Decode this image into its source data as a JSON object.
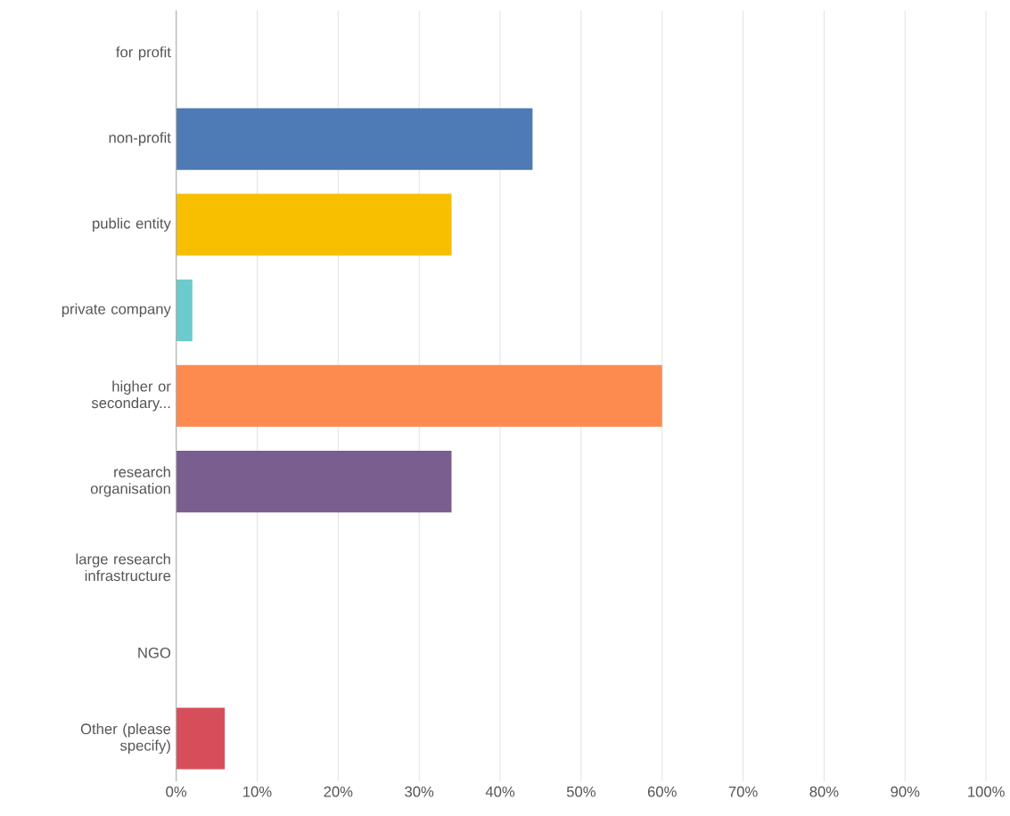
{
  "chart_data": {
    "type": "bar",
    "orientation": "horizontal",
    "categories": [
      "for profit",
      "non-profit",
      "public entity",
      "private company",
      "higher or secondary...",
      "research organisation",
      "large research infrastructure",
      "NGO",
      "Other (please specify)"
    ],
    "values": [
      0,
      44,
      34,
      2,
      60,
      34,
      0,
      0,
      6
    ],
    "colors": [
      "#6bc8cd",
      "#4e7ab5",
      "#f7bf00",
      "#6ccacc",
      "#fd8b4f",
      "#7b5e90",
      "#a0a0a0",
      "#a0a0a0",
      "#d64e5a"
    ],
    "xlim": [
      0,
      100
    ],
    "xticks": [
      {
        "value": 0,
        "label": "0%"
      },
      {
        "value": 10,
        "label": "10%"
      },
      {
        "value": 20,
        "label": "20%"
      },
      {
        "value": 30,
        "label": "30%"
      },
      {
        "value": 40,
        "label": "40%"
      },
      {
        "value": 50,
        "label": "50%"
      },
      {
        "value": 60,
        "label": "60%"
      },
      {
        "value": 70,
        "label": "70%"
      },
      {
        "value": 80,
        "label": "80%"
      },
      {
        "value": 90,
        "label": "90%"
      },
      {
        "value": 100,
        "label": "100%"
      }
    ],
    "grid": "x"
  }
}
